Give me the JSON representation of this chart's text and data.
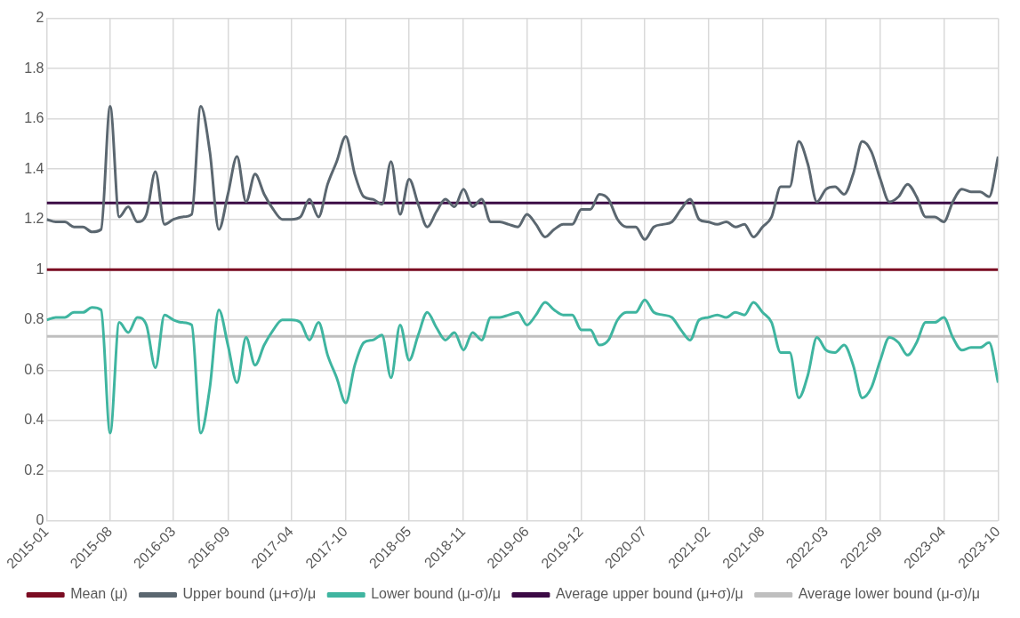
{
  "chart_data": {
    "type": "line",
    "x": [
      "2015-01",
      "2015-02",
      "2015-03",
      "2015-04",
      "2015-05",
      "2015-06",
      "2015-07",
      "2015-08",
      "2015-09",
      "2015-10",
      "2015-11",
      "2015-12",
      "2016-01",
      "2016-02",
      "2016-03",
      "2016-04",
      "2016-05",
      "2016-06",
      "2016-07",
      "2016-08",
      "2016-09",
      "2016-10",
      "2016-11",
      "2016-12",
      "2017-01",
      "2017-02",
      "2017-03",
      "2017-04",
      "2017-05",
      "2017-06",
      "2017-07",
      "2017-08",
      "2017-09",
      "2017-10",
      "2017-11",
      "2017-12",
      "2018-01",
      "2018-02",
      "2018-03",
      "2018-04",
      "2018-05",
      "2018-06",
      "2018-07",
      "2018-08",
      "2018-09",
      "2018-10",
      "2018-11",
      "2018-12",
      "2019-01",
      "2019-02",
      "2019-03",
      "2019-04",
      "2019-05",
      "2019-06",
      "2019-07",
      "2019-08",
      "2019-09",
      "2019-10",
      "2019-11",
      "2019-12",
      "2020-01",
      "2020-02",
      "2020-03",
      "2020-04",
      "2020-05",
      "2020-06",
      "2020-07",
      "2020-08",
      "2020-09",
      "2020-10",
      "2020-11",
      "2020-12",
      "2021-01",
      "2021-02",
      "2021-03",
      "2021-04",
      "2021-05",
      "2021-06",
      "2021-07",
      "2021-08",
      "2021-09",
      "2021-10",
      "2021-11",
      "2021-12",
      "2022-01",
      "2022-02",
      "2022-03",
      "2022-04",
      "2022-05",
      "2022-06",
      "2022-07",
      "2022-08",
      "2022-09",
      "2022-10",
      "2022-11",
      "2022-12",
      "2023-01",
      "2023-02",
      "2023-03",
      "2023-04",
      "2023-05",
      "2023-06",
      "2023-07",
      "2023-08",
      "2023-09",
      "2023-10"
    ],
    "series": [
      {
        "name": "Mean (μ)",
        "color": "#7b0c22",
        "x": [
          "2015-01",
          "2023-10"
        ],
        "values": [
          1,
          1
        ]
      },
      {
        "name": "Upper bound (μ+σ)/μ",
        "color": "#5b6770",
        "values": [
          1.2,
          1.19,
          1.19,
          1.17,
          1.17,
          1.15,
          1.16,
          1.65,
          1.21,
          1.25,
          1.19,
          1.22,
          1.39,
          1.18,
          1.2,
          1.21,
          1.22,
          1.65,
          1.47,
          1.16,
          1.3,
          1.45,
          1.27,
          1.38,
          1.3,
          1.24,
          1.2,
          1.2,
          1.21,
          1.28,
          1.21,
          1.34,
          1.43,
          1.53,
          1.38,
          1.29,
          1.28,
          1.26,
          1.43,
          1.22,
          1.36,
          1.26,
          1.17,
          1.23,
          1.28,
          1.25,
          1.32,
          1.25,
          1.28,
          1.19,
          1.19,
          1.18,
          1.17,
          1.22,
          1.18,
          1.13,
          1.16,
          1.18,
          1.18,
          1.24,
          1.24,
          1.3,
          1.28,
          1.2,
          1.17,
          1.17,
          1.12,
          1.17,
          1.18,
          1.19,
          1.24,
          1.28,
          1.2,
          1.19,
          1.18,
          1.19,
          1.17,
          1.18,
          1.13,
          1.17,
          1.21,
          1.33,
          1.33,
          1.51,
          1.42,
          1.27,
          1.32,
          1.33,
          1.3,
          1.38,
          1.51,
          1.47,
          1.36,
          1.27,
          1.29,
          1.34,
          1.29,
          1.21,
          1.21,
          1.19,
          1.27,
          1.32,
          1.31,
          1.31,
          1.29,
          1.45
        ]
      },
      {
        "name": "Lower bound (μ-σ)/μ",
        "color": "#3fb5a0",
        "values": [
          0.8,
          0.81,
          0.81,
          0.83,
          0.83,
          0.85,
          0.84,
          0.35,
          0.79,
          0.75,
          0.81,
          0.78,
          0.61,
          0.82,
          0.8,
          0.79,
          0.78,
          0.35,
          0.53,
          0.84,
          0.7,
          0.55,
          0.73,
          0.62,
          0.7,
          0.76,
          0.8,
          0.8,
          0.79,
          0.72,
          0.79,
          0.66,
          0.57,
          0.47,
          0.62,
          0.71,
          0.72,
          0.74,
          0.57,
          0.78,
          0.64,
          0.74,
          0.83,
          0.77,
          0.72,
          0.75,
          0.68,
          0.75,
          0.72,
          0.81,
          0.81,
          0.82,
          0.83,
          0.78,
          0.82,
          0.87,
          0.84,
          0.82,
          0.82,
          0.76,
          0.76,
          0.7,
          0.72,
          0.8,
          0.83,
          0.83,
          0.88,
          0.83,
          0.82,
          0.81,
          0.76,
          0.72,
          0.8,
          0.81,
          0.82,
          0.81,
          0.83,
          0.82,
          0.87,
          0.83,
          0.79,
          0.67,
          0.67,
          0.49,
          0.58,
          0.73,
          0.68,
          0.67,
          0.7,
          0.62,
          0.49,
          0.53,
          0.64,
          0.73,
          0.71,
          0.66,
          0.71,
          0.79,
          0.79,
          0.81,
          0.73,
          0.68,
          0.69,
          0.69,
          0.71,
          0.55
        ]
      },
      {
        "name": "Average upper bound (μ+σ)/μ",
        "color": "#3b0a45",
        "x": [
          "2015-01",
          "2023-10"
        ],
        "values": [
          1.265,
          1.265
        ]
      },
      {
        "name": "Average lower bound (μ-σ)/μ",
        "color": "#bfbfbf",
        "x": [
          "2015-01",
          "2023-10"
        ],
        "values": [
          0.735,
          0.735
        ]
      }
    ],
    "xlim": [
      "2015-01",
      "2023-10"
    ],
    "xticks": [
      "2015-01",
      "2015-08",
      "2016-03",
      "2016-09",
      "2017-04",
      "2017-10",
      "2018-05",
      "2018-11",
      "2019-06",
      "2019-12",
      "2020-07",
      "2021-02",
      "2021-08",
      "2022-03",
      "2022-09",
      "2023-04",
      "2023-10"
    ],
    "ylim": [
      0,
      2
    ],
    "yticks": [
      0,
      0.2,
      0.4,
      0.6,
      0.8,
      1,
      1.2,
      1.4,
      1.6,
      1.8,
      2
    ],
    "grid": true,
    "legend": "bottom",
    "marker": "none",
    "line_style": "solid"
  }
}
